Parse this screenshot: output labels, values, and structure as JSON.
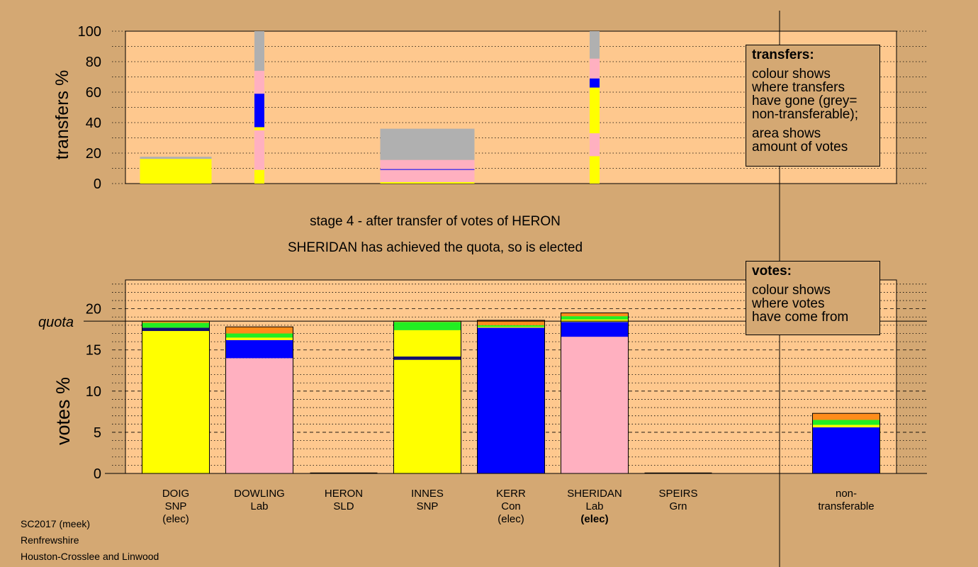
{
  "colors": {
    "background": "#d4a873",
    "plot_background": "#fec88e",
    "SNP": "#ffff00",
    "Lab": "#ffb0c0",
    "Con": "#0000ff",
    "Grn": "#22ee22",
    "SLD": "#ff8c1a",
    "nontransferable": "#b0b0b0",
    "navy": "#10106e"
  },
  "stage_text": "stage 4 - after transfer of votes of HERON",
  "status_text": "SHERIDAN has achieved the quota, so is elected",
  "legend_transfers": {
    "title": "transfers:",
    "lines_a": [
      "colour shows",
      "where transfers",
      "have gone (grey=",
      "non-transferable);"
    ],
    "lines_b": [
      "area shows",
      "amount of votes"
    ]
  },
  "legend_votes": {
    "title": "votes:",
    "lines": [
      "colour shows",
      "where votes",
      "have come from"
    ]
  },
  "footer": [
    "SC2017 (meek)",
    "Renfrewshire",
    "Houston-Crosslee and Linwood"
  ],
  "chart_data": [
    {
      "type": "bar",
      "name": "transfers",
      "ylabel": "transfers %",
      "ylim": [
        0,
        100
      ],
      "yticks": [
        0,
        20,
        40,
        60,
        80,
        100
      ],
      "categories": [
        "DOIG",
        "DOWLING",
        "HERON",
        "INNES",
        "KERR",
        "SHERIDAN",
        "SPEIRS"
      ],
      "bars": [
        {
          "candidate": "DOIG",
          "width_share": 17.6,
          "segments": [
            {
              "color": "SNP",
              "value": 16.2
            },
            {
              "color": "nontransferable",
              "value": 1.4
            }
          ]
        },
        {
          "candidate": "DOWLING",
          "width_share": 0,
          "segments": [
            {
              "color": "SNP",
              "value": 9
            },
            {
              "color": "Lab",
              "value": 26
            },
            {
              "color": "SNP",
              "value": 2
            },
            {
              "color": "Con",
              "value": 22
            },
            {
              "color": "Lab",
              "value": 15
            },
            {
              "color": "nontransferable",
              "value": 26
            }
          ]
        },
        {
          "candidate": "INNES",
          "width_share": 36,
          "segments": [
            {
              "color": "SNP",
              "value": 1
            },
            {
              "color": "Lab",
              "value": 8
            },
            {
              "color": "Con",
              "value": 0.5
            },
            {
              "color": "Lab",
              "value": 6
            },
            {
              "color": "nontransferable",
              "value": 20.5
            }
          ]
        },
        {
          "candidate": "SHERIDAN",
          "width_share": 0,
          "segments": [
            {
              "color": "SNP",
              "value": 18
            },
            {
              "color": "Lab",
              "value": 15
            },
            {
              "color": "SNP",
              "value": 30
            },
            {
              "color": "Con",
              "value": 6
            },
            {
              "color": "Lab",
              "value": 13
            },
            {
              "color": "nontransferable",
              "value": 18
            }
          ]
        }
      ]
    },
    {
      "type": "bar",
      "name": "votes",
      "ylabel": "votes %",
      "ylim": [
        0,
        23.5
      ],
      "yticks": [
        0,
        5,
        10,
        15,
        20
      ],
      "quota": 18.5,
      "quota_label": "quota",
      "candidates": [
        {
          "name": "DOIG",
          "party": "SNP",
          "status": "(elec)",
          "bold_status": false,
          "segments": [
            {
              "color": "SNP",
              "value": 17.3
            },
            {
              "color": "navy",
              "value": 0.4
            },
            {
              "color": "Grn",
              "value": 0.6
            },
            {
              "color": "SLD",
              "value": 0.2
            }
          ]
        },
        {
          "name": "DOWLING",
          "party": "Lab",
          "status": "",
          "bold_status": false,
          "segments": [
            {
              "color": "Lab",
              "value": 14.0
            },
            {
              "color": "Con",
              "value": 2.2
            },
            {
              "color": "SNP",
              "value": 0.3
            },
            {
              "color": "Grn",
              "value": 0.5
            },
            {
              "color": "SLD",
              "value": 0.8
            }
          ]
        },
        {
          "name": "HERON",
          "party": "SLD",
          "status": "",
          "bold_status": false,
          "segments": []
        },
        {
          "name": "INNES",
          "party": "SNP",
          "status": "",
          "bold_status": false,
          "segments": [
            {
              "color": "SNP",
              "value": 13.8
            },
            {
              "color": "navy",
              "value": 0.4
            },
            {
              "color": "SNP",
              "value": 3.2
            },
            {
              "color": "Grn",
              "value": 1.0
            },
            {
              "color": "SLD",
              "value": 0.1
            }
          ]
        },
        {
          "name": "KERR",
          "party": "Con",
          "status": "(elec)",
          "bold_status": false,
          "segments": [
            {
              "color": "Con",
              "value": 17.7
            },
            {
              "color": "SNP",
              "value": 0.1
            },
            {
              "color": "Grn",
              "value": 0.2
            },
            {
              "color": "SLD",
              "value": 0.6
            }
          ]
        },
        {
          "name": "SHERIDAN",
          "party": "Lab",
          "status": "(elec)",
          "bold_status": true,
          "segments": [
            {
              "color": "Lab",
              "value": 16.6
            },
            {
              "color": "Con",
              "value": 1.8
            },
            {
              "color": "SNP",
              "value": 0.3
            },
            {
              "color": "Grn",
              "value": 0.4
            },
            {
              "color": "SLD",
              "value": 0.4
            }
          ]
        },
        {
          "name": "SPEIRS",
          "party": "Grn",
          "status": "",
          "bold_status": false,
          "segments": []
        },
        {
          "name": "non-transferable",
          "label_lines": [
            "non-",
            "transferable"
          ],
          "segments": [
            {
              "color": "Con",
              "value": 5.6
            },
            {
              "color": "SNP",
              "value": 0.3
            },
            {
              "color": "Grn",
              "value": 0.6
            },
            {
              "color": "SLD",
              "value": 0.8
            }
          ]
        }
      ]
    }
  ]
}
